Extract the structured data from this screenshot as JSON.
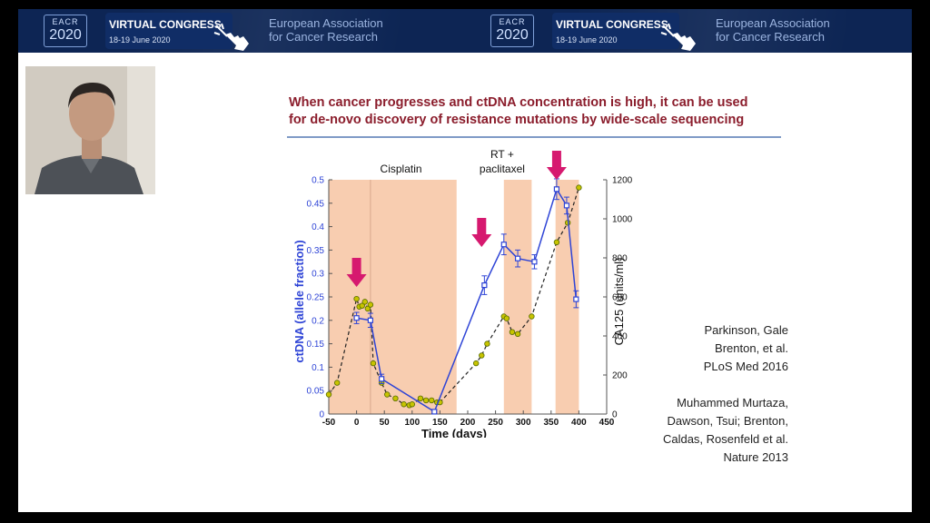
{
  "banner": {
    "logo_top": "EACR",
    "logo_year": "2020",
    "event_title": "VIRTUAL CONGRESS",
    "event_dates": "18-19 June 2020",
    "org_line1": "European Association",
    "org_line2": "for Cancer Research"
  },
  "slide": {
    "title_line1": "When cancer progresses and ctDNA concentration is high, it can be used",
    "title_line2": "for de-novo discovery of resistance mutations by wide-scale sequencing",
    "citation1": [
      "Parkinson, Gale",
      "Brenton, et al.",
      "PLoS Med 2016"
    ],
    "citation2": [
      "Muhammed Murtaza,",
      "Dawson, Tsui; Brenton,",
      "Caldas, Rosenfeld et al.",
      "Nature 2013"
    ]
  },
  "chart_data": {
    "type": "line",
    "xlabel": "Time (days)",
    "ylabel_left": "ctDNA (allele fraction)",
    "ylabel_right": "CA125 (units/ml)",
    "xlim": [
      -50,
      450
    ],
    "ylim_left": [
      0,
      0.5
    ],
    "ylim_right": [
      0,
      1200
    ],
    "x_ticks": [
      "-50",
      "0",
      "50",
      "100",
      "150",
      "200",
      "250",
      "300",
      "350",
      "400",
      "450"
    ],
    "y_ticks_left": [
      "0",
      "0.05",
      "0.1",
      "0.15",
      "0.2",
      "0.25",
      "0.3",
      "0.35",
      "0.4",
      "0.45",
      "0.5"
    ],
    "y_ticks_right": [
      "0",
      "200",
      "400",
      "600",
      "800",
      "1000",
      "1200"
    ],
    "treatment_periods": [
      {
        "label": "Cisplatin",
        "start": -50,
        "end": 180
      },
      {
        "label": "RT + paclitaxel",
        "start": 265,
        "end": 315
      },
      {
        "label": "",
        "start": 358,
        "end": 400
      }
    ],
    "arrows_at_x": [
      0,
      225,
      360
    ],
    "series": [
      {
        "axis": "left",
        "color": "#2e44d6",
        "style": "solid",
        "x": [
          0,
          25,
          45,
          140,
          230,
          265,
          290,
          320,
          360,
          378,
          395
        ],
        "y": [
          0.205,
          0.2,
          0.075,
          0.005,
          0.275,
          0.362,
          0.332,
          0.325,
          0.48,
          0.445,
          0.245
        ],
        "err": [
          0.012,
          0.015,
          0.01,
          0.004,
          0.02,
          0.022,
          0.018,
          0.015,
          0.022,
          0.018,
          0.018
        ]
      },
      {
        "axis": "right",
        "color": "#c8c400",
        "style": "dashed",
        "x": [
          -50,
          -35,
          0,
          5,
          10,
          15,
          20,
          25,
          30,
          45,
          55,
          70,
          85,
          95,
          100,
          115,
          125,
          135,
          145,
          150,
          215,
          225,
          235,
          265,
          270,
          280,
          290,
          315,
          360,
          380,
          400
        ],
        "y": [
          100,
          160,
          590,
          550,
          555,
          575,
          540,
          560,
          260,
          160,
          100,
          80,
          50,
          45,
          50,
          80,
          70,
          70,
          60,
          60,
          260,
          300,
          360,
          500,
          490,
          420,
          410,
          500,
          880,
          980,
          1160
        ]
      }
    ]
  }
}
